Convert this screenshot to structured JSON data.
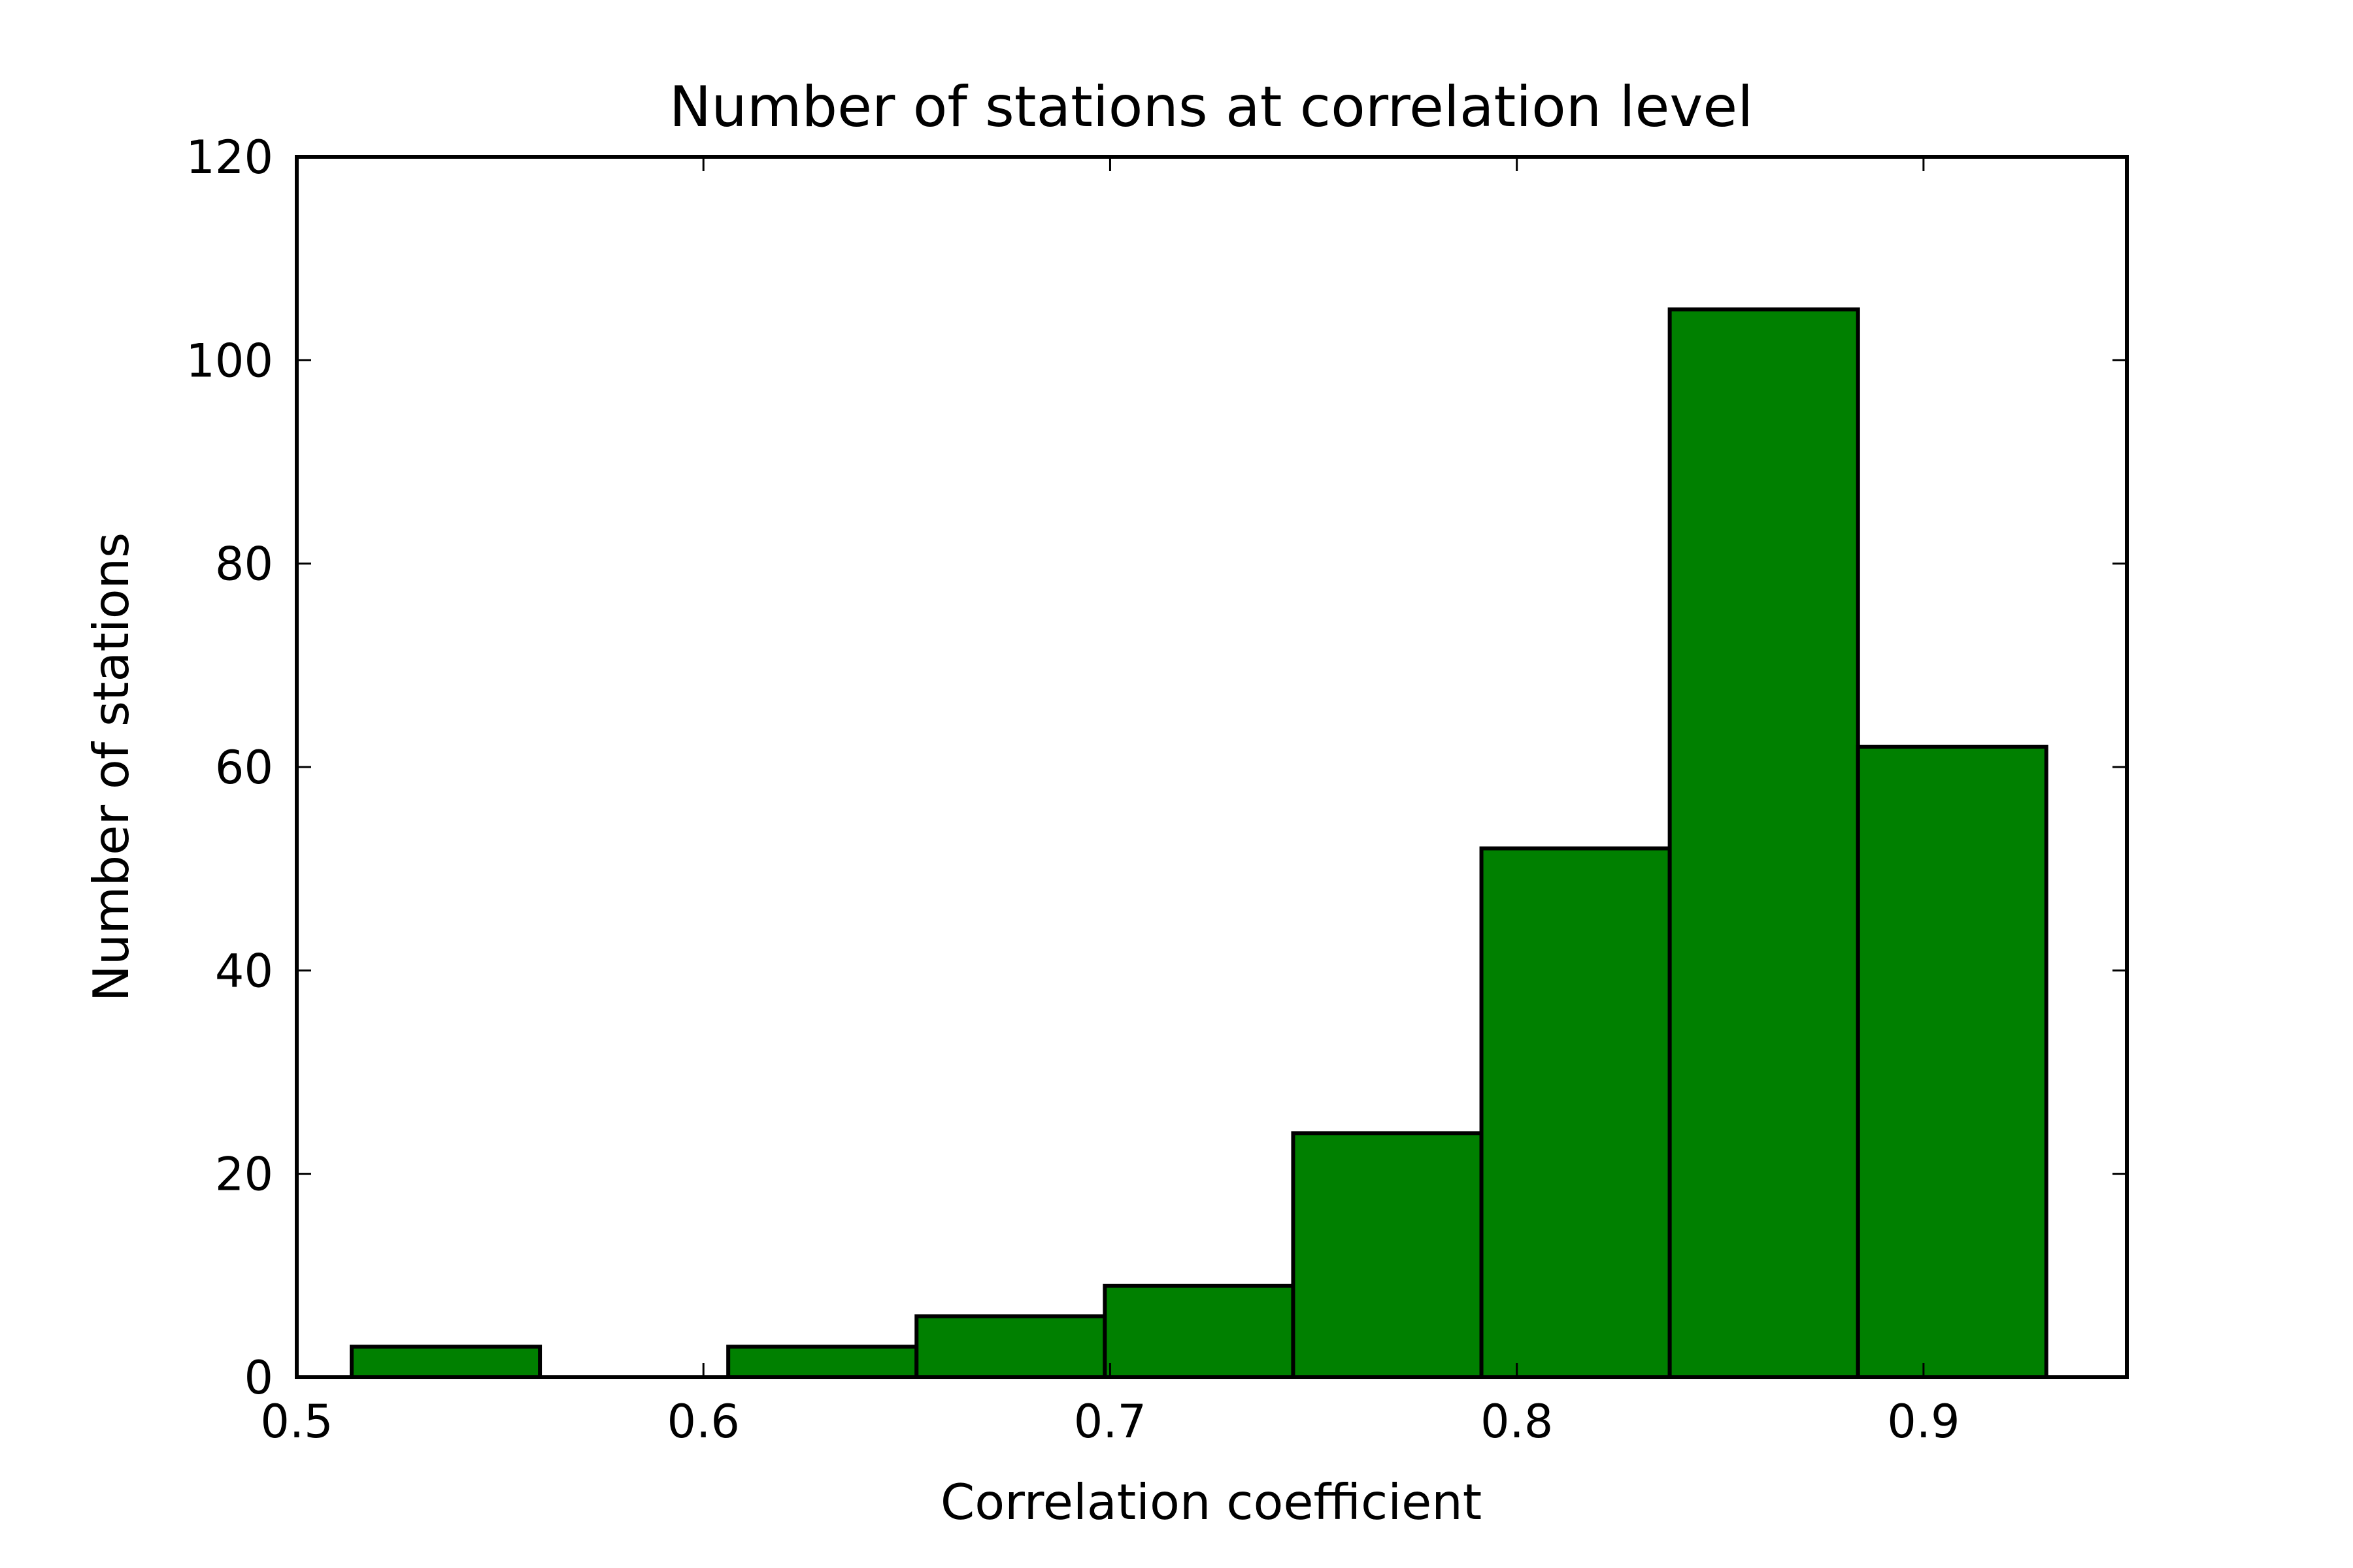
{
  "chart_data": {
    "type": "bar",
    "title": "Number of stations at correlation level",
    "xlabel": "Correlation coefficient",
    "ylabel": "Number of stations",
    "xlim": [
      0.5,
      0.95
    ],
    "ylim": [
      0,
      120
    ],
    "xticks": [
      "0.5",
      "0.6",
      "0.7",
      "0.8",
      "0.9"
    ],
    "yticks": [
      "0",
      "20",
      "40",
      "60",
      "80",
      "100",
      "120"
    ],
    "bin_edges": [
      0.5135,
      0.5598,
      0.6061,
      0.6524,
      0.6987,
      0.745,
      0.7913,
      0.8376,
      0.8839,
      0.9302
    ],
    "values": [
      3,
      0,
      3,
      6,
      9,
      24,
      52,
      105,
      62
    ],
    "bar_color": "#008000",
    "edge_color": "#000000",
    "grid": false,
    "legend": false
  }
}
